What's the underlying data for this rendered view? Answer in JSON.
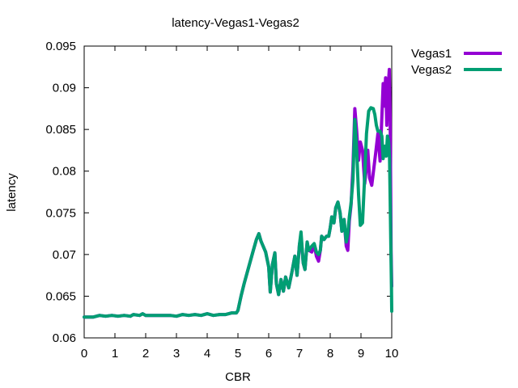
{
  "chart_data": {
    "type": "line",
    "title": "latency-Vegas1-Vegas2",
    "xlabel": "CBR",
    "ylabel": "latency",
    "xlim": [
      0,
      10
    ],
    "ylim": [
      0.06,
      0.095
    ],
    "x_ticks": [
      "0",
      "1",
      "2",
      "3",
      "4",
      "5",
      "6",
      "7",
      "8",
      "9",
      "10"
    ],
    "y_ticks": [
      "0.06",
      "0.065",
      "0.07",
      "0.075",
      "0.08",
      "0.085",
      "0.09",
      "0.095"
    ],
    "grid": false,
    "legend_position": "top-right, outside plot",
    "series": [
      {
        "name": "Vegas1",
        "color": "#9400d3",
        "points": [
          [
            0,
            0.0625
          ],
          [
            0.3,
            0.0625
          ],
          [
            0.5,
            0.0627
          ],
          [
            0.7,
            0.0626
          ],
          [
            0.9,
            0.0627
          ],
          [
            1.1,
            0.0626
          ],
          [
            1.3,
            0.0627
          ],
          [
            1.5,
            0.0626
          ],
          [
            1.6,
            0.0628
          ],
          [
            1.8,
            0.0627
          ],
          [
            1.9,
            0.0629
          ],
          [
            2.0,
            0.0627
          ],
          [
            2.2,
            0.0627
          ],
          [
            2.5,
            0.0627
          ],
          [
            2.8,
            0.0627
          ],
          [
            3.0,
            0.0626
          ],
          [
            3.2,
            0.0628
          ],
          [
            3.4,
            0.0627
          ],
          [
            3.6,
            0.0628
          ],
          [
            3.8,
            0.0627
          ],
          [
            4.0,
            0.0629
          ],
          [
            4.2,
            0.0627
          ],
          [
            4.4,
            0.0628
          ],
          [
            4.6,
            0.0628
          ],
          [
            4.8,
            0.063
          ],
          [
            4.95,
            0.063
          ],
          [
            5.0,
            0.0633
          ],
          [
            5.1,
            0.065
          ],
          [
            5.2,
            0.0665
          ],
          [
            5.35,
            0.0685
          ],
          [
            5.5,
            0.0705
          ],
          [
            5.6,
            0.0718
          ],
          [
            5.68,
            0.0725
          ],
          [
            5.75,
            0.0716
          ],
          [
            5.9,
            0.0703
          ],
          [
            6.0,
            0.0685
          ],
          [
            6.05,
            0.0655
          ],
          [
            6.12,
            0.0688
          ],
          [
            6.2,
            0.0702
          ],
          [
            6.25,
            0.0665
          ],
          [
            6.32,
            0.0652
          ],
          [
            6.4,
            0.067
          ],
          [
            6.48,
            0.0656
          ],
          [
            6.55,
            0.0673
          ],
          [
            6.65,
            0.066
          ],
          [
            6.75,
            0.0678
          ],
          [
            6.85,
            0.0698
          ],
          [
            6.92,
            0.0675
          ],
          [
            7.0,
            0.0712
          ],
          [
            7.05,
            0.0722
          ],
          [
            7.12,
            0.069
          ],
          [
            7.18,
            0.0682
          ],
          [
            7.25,
            0.0715
          ],
          [
            7.3,
            0.0705
          ],
          [
            7.4,
            0.0703
          ],
          [
            7.48,
            0.0712
          ],
          [
            7.55,
            0.0698
          ],
          [
            7.62,
            0.0692
          ],
          [
            7.68,
            0.0705
          ],
          [
            7.72,
            0.0722
          ],
          [
            7.8,
            0.0718
          ],
          [
            7.88,
            0.0722
          ],
          [
            7.95,
            0.0722
          ],
          [
            8.0,
            0.0732
          ],
          [
            8.05,
            0.0745
          ],
          [
            8.12,
            0.0738
          ],
          [
            8.18,
            0.0756
          ],
          [
            8.25,
            0.0763
          ],
          [
            8.32,
            0.075
          ],
          [
            8.38,
            0.0728
          ],
          [
            8.45,
            0.0742
          ],
          [
            8.52,
            0.071
          ],
          [
            8.57,
            0.0705
          ],
          [
            8.62,
            0.074
          ],
          [
            8.68,
            0.076
          ],
          [
            8.74,
            0.0805
          ],
          [
            8.8,
            0.0875
          ],
          [
            8.86,
            0.0848
          ],
          [
            8.92,
            0.0813
          ],
          [
            8.98,
            0.0835
          ],
          [
            9.05,
            0.0825
          ],
          [
            9.12,
            0.0785
          ],
          [
            9.18,
            0.0805
          ],
          [
            9.22,
            0.0825
          ],
          [
            9.28,
            0.0792
          ],
          [
            9.35,
            0.0783
          ],
          [
            9.4,
            0.0798
          ],
          [
            9.48,
            0.0822
          ],
          [
            9.55,
            0.0845
          ],
          [
            9.62,
            0.0812
          ],
          [
            9.68,
            0.0865
          ],
          [
            9.72,
            0.0905
          ],
          [
            9.76,
            0.0878
          ],
          [
            9.8,
            0.0912
          ],
          [
            9.84,
            0.0855
          ],
          [
            9.88,
            0.0898
          ],
          [
            9.92,
            0.0922
          ],
          [
            9.95,
            0.0862
          ],
          [
            9.98,
            0.0705
          ],
          [
            10.0,
            0.0662
          ]
        ]
      },
      {
        "name": "Vegas2",
        "color": "#009e73",
        "points": [
          [
            0,
            0.0625
          ],
          [
            0.3,
            0.0625
          ],
          [
            0.5,
            0.0627
          ],
          [
            0.7,
            0.0626
          ],
          [
            0.9,
            0.0627
          ],
          [
            1.1,
            0.0626
          ],
          [
            1.3,
            0.0627
          ],
          [
            1.5,
            0.0626
          ],
          [
            1.6,
            0.0628
          ],
          [
            1.8,
            0.0627
          ],
          [
            1.9,
            0.0629
          ],
          [
            2.0,
            0.0627
          ],
          [
            2.2,
            0.0627
          ],
          [
            2.5,
            0.0627
          ],
          [
            2.8,
            0.0627
          ],
          [
            3.0,
            0.0626
          ],
          [
            3.2,
            0.0628
          ],
          [
            3.4,
            0.0627
          ],
          [
            3.6,
            0.0628
          ],
          [
            3.8,
            0.0627
          ],
          [
            4.0,
            0.0629
          ],
          [
            4.2,
            0.0627
          ],
          [
            4.4,
            0.0628
          ],
          [
            4.6,
            0.0628
          ],
          [
            4.8,
            0.063
          ],
          [
            4.95,
            0.063
          ],
          [
            5.0,
            0.0633
          ],
          [
            5.1,
            0.065
          ],
          [
            5.2,
            0.0665
          ],
          [
            5.35,
            0.0685
          ],
          [
            5.5,
            0.0705
          ],
          [
            5.6,
            0.0718
          ],
          [
            5.68,
            0.0725
          ],
          [
            5.75,
            0.0716
          ],
          [
            5.9,
            0.0703
          ],
          [
            6.0,
            0.0685
          ],
          [
            6.05,
            0.0655
          ],
          [
            6.12,
            0.0688
          ],
          [
            6.2,
            0.0702
          ],
          [
            6.25,
            0.0665
          ],
          [
            6.32,
            0.0652
          ],
          [
            6.4,
            0.067
          ],
          [
            6.48,
            0.0656
          ],
          [
            6.55,
            0.0673
          ],
          [
            6.65,
            0.066
          ],
          [
            6.75,
            0.0678
          ],
          [
            6.85,
            0.0698
          ],
          [
            6.92,
            0.0675
          ],
          [
            7.0,
            0.0712
          ],
          [
            7.05,
            0.0727
          ],
          [
            7.12,
            0.069
          ],
          [
            7.18,
            0.0682
          ],
          [
            7.25,
            0.0715
          ],
          [
            7.3,
            0.0705
          ],
          [
            7.4,
            0.071
          ],
          [
            7.48,
            0.0713
          ],
          [
            7.55,
            0.0703
          ],
          [
            7.62,
            0.07
          ],
          [
            7.68,
            0.0705
          ],
          [
            7.72,
            0.0722
          ],
          [
            7.8,
            0.0718
          ],
          [
            7.88,
            0.0722
          ],
          [
            7.95,
            0.0722
          ],
          [
            8.0,
            0.0732
          ],
          [
            8.05,
            0.0745
          ],
          [
            8.12,
            0.0738
          ],
          [
            8.18,
            0.0756
          ],
          [
            8.25,
            0.0763
          ],
          [
            8.32,
            0.075
          ],
          [
            8.38,
            0.0728
          ],
          [
            8.45,
            0.0742
          ],
          [
            8.52,
            0.0715
          ],
          [
            8.57,
            0.0725
          ],
          [
            8.62,
            0.0745
          ],
          [
            8.68,
            0.0762
          ],
          [
            8.74,
            0.079
          ],
          [
            8.8,
            0.0862
          ],
          [
            8.86,
            0.0825
          ],
          [
            8.92,
            0.0772
          ],
          [
            8.98,
            0.0735
          ],
          [
            9.05,
            0.0738
          ],
          [
            9.12,
            0.0795
          ],
          [
            9.18,
            0.0845
          ],
          [
            9.25,
            0.0872
          ],
          [
            9.32,
            0.0876
          ],
          [
            9.4,
            0.0875
          ],
          [
            9.45,
            0.0868
          ],
          [
            9.5,
            0.0855
          ],
          [
            9.55,
            0.0848
          ],
          [
            9.62,
            0.0848
          ],
          [
            9.68,
            0.0842
          ],
          [
            9.72,
            0.0815
          ],
          [
            9.78,
            0.083
          ],
          [
            9.82,
            0.0818
          ],
          [
            9.86,
            0.0842
          ],
          [
            9.9,
            0.0835
          ],
          [
            9.93,
            0.0815
          ],
          [
            9.95,
            0.0765
          ],
          [
            9.97,
            0.071
          ],
          [
            9.99,
            0.0665
          ],
          [
            10.0,
            0.0632
          ]
        ]
      }
    ]
  }
}
